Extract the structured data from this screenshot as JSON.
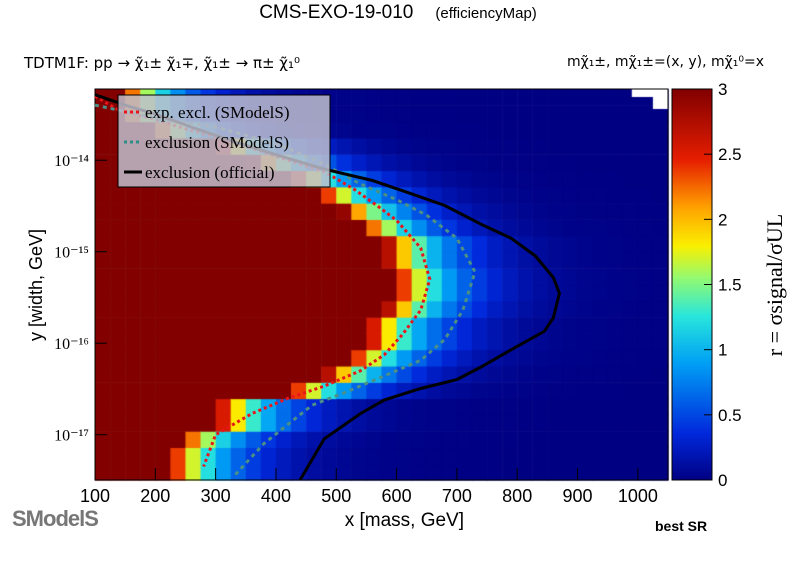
{
  "header": {
    "title": "CMS-EXO-19-010",
    "subtitle": "(efficiencyMap)",
    "process": "TDTM1F: pp → χ̃₁± χ̃₁∓, χ̃₁± → π± χ̃₁⁰",
    "mass_relation": "mχ̃₁±, mχ̃₁±=(x, y), mχ̃₁⁰=x"
  },
  "footer": {
    "best_sr": "best SR",
    "logo": "SModelS"
  },
  "chart_data": {
    "type": "heatmap",
    "xlabel": "x [mass, GeV]",
    "ylabel": "y [width, GeV]",
    "zlabel": "r = σsignal/σUL",
    "xlim": [
      100,
      1050
    ],
    "y_scale": "log",
    "ylim": [
      3.2e-18,
      6e-14
    ],
    "zlim": [
      0,
      3
    ],
    "x_ticks": [
      "100",
      "200",
      "300",
      "400",
      "500",
      "600",
      "700",
      "800",
      "900",
      "1000"
    ],
    "x_tick_values": [
      100,
      200,
      300,
      400,
      500,
      600,
      700,
      800,
      900,
      1000
    ],
    "y_ticks": [
      "10⁻¹⁴",
      "10⁻¹⁵",
      "10⁻¹⁶",
      "10⁻¹⁷"
    ],
    "y_tick_values": [
      1e-14,
      1e-15,
      1e-16,
      1e-17
    ],
    "z_ticks": [
      "0",
      "0.5",
      "1",
      "1.5",
      "2",
      "2.5",
      "3"
    ],
    "z_tick_values": [
      0,
      0.5,
      1,
      1.5,
      2,
      2.5,
      3
    ],
    "legend": {
      "placement": "top-left",
      "entries": [
        {
          "label": "exp. excl. (SModelS)",
          "color": "#e8161b",
          "style": "dotted"
        },
        {
          "label": "exclusion (SModelS)",
          "color": "#2f8f86",
          "style": "dotted"
        },
        {
          "label": "exclusion (official)",
          "color": "#000000",
          "style": "solid"
        }
      ]
    },
    "series": [
      {
        "name": "exp. excl. (SModelS)",
        "points": [
          [
            100,
            5e-14
          ],
          [
            140,
            3.5e-14
          ],
          [
            200,
            2.8e-14
          ],
          [
            250,
            2.2e-14
          ],
          [
            300,
            1.8e-14
          ],
          [
            360,
            1.35e-14
          ],
          [
            420,
            1e-14
          ],
          [
            480,
            7.5e-15
          ],
          [
            530,
            4.8e-15
          ],
          [
            570,
            3.1e-15
          ],
          [
            600,
            2.2e-15
          ],
          [
            640,
            1.1e-15
          ],
          [
            655,
            5e-16
          ],
          [
            640,
            2.3e-16
          ],
          [
            610,
            1.25e-16
          ],
          [
            580,
            7.5e-17
          ],
          [
            540,
            5e-17
          ],
          [
            480,
            3.4e-17
          ],
          [
            420,
            2.5e-17
          ],
          [
            360,
            1.7e-17
          ],
          [
            300,
            1e-17
          ],
          [
            280,
            4.5e-18
          ]
        ]
      },
      {
        "name": "exclusion (SModelS)",
        "points": [
          [
            100,
            4e-14
          ],
          [
            150,
            3.4e-14
          ],
          [
            200,
            2.9e-14
          ],
          [
            300,
            2.3e-14
          ],
          [
            360,
            1.8e-14
          ],
          [
            420,
            1.35e-14
          ],
          [
            480,
            9e-15
          ],
          [
            540,
            5.5e-15
          ],
          [
            600,
            3.7e-15
          ],
          [
            650,
            2.5e-15
          ],
          [
            700,
            1.4e-15
          ],
          [
            730,
            6e-16
          ],
          [
            710,
            2.3e-16
          ],
          [
            680,
            1.1e-16
          ],
          [
            640,
            6.5e-17
          ],
          [
            580,
            4.4e-17
          ],
          [
            520,
            3e-17
          ],
          [
            460,
            2.1e-17
          ],
          [
            420,
            1.3e-17
          ],
          [
            380,
            8e-18
          ],
          [
            330,
            3.5e-18
          ]
        ]
      },
      {
        "name": "exclusion (official)",
        "points": [
          [
            100,
            5.2e-14
          ],
          [
            150,
            4e-14
          ],
          [
            200,
            3.2e-14
          ],
          [
            260,
            2.3e-14
          ],
          [
            330,
            1.6e-14
          ],
          [
            400,
            1.15e-14
          ],
          [
            480,
            8e-15
          ],
          [
            560,
            6e-15
          ],
          [
            620,
            4.4e-15
          ],
          [
            680,
            3.2e-15
          ],
          [
            740,
            2e-15
          ],
          [
            790,
            1.4e-15
          ],
          [
            830,
            9e-16
          ],
          [
            860,
            5.2e-16
          ],
          [
            870,
            3.5e-16
          ],
          [
            860,
            1.9e-16
          ],
          [
            845,
            1.35e-16
          ],
          [
            790,
            8.5e-17
          ],
          [
            740,
            5.5e-17
          ],
          [
            700,
            4e-17
          ],
          [
            640,
            3.2e-17
          ],
          [
            580,
            2.4e-17
          ],
          [
            540,
            1.7e-17
          ],
          [
            480,
            9e-18
          ],
          [
            440,
            3.2e-18
          ]
        ]
      }
    ]
  }
}
